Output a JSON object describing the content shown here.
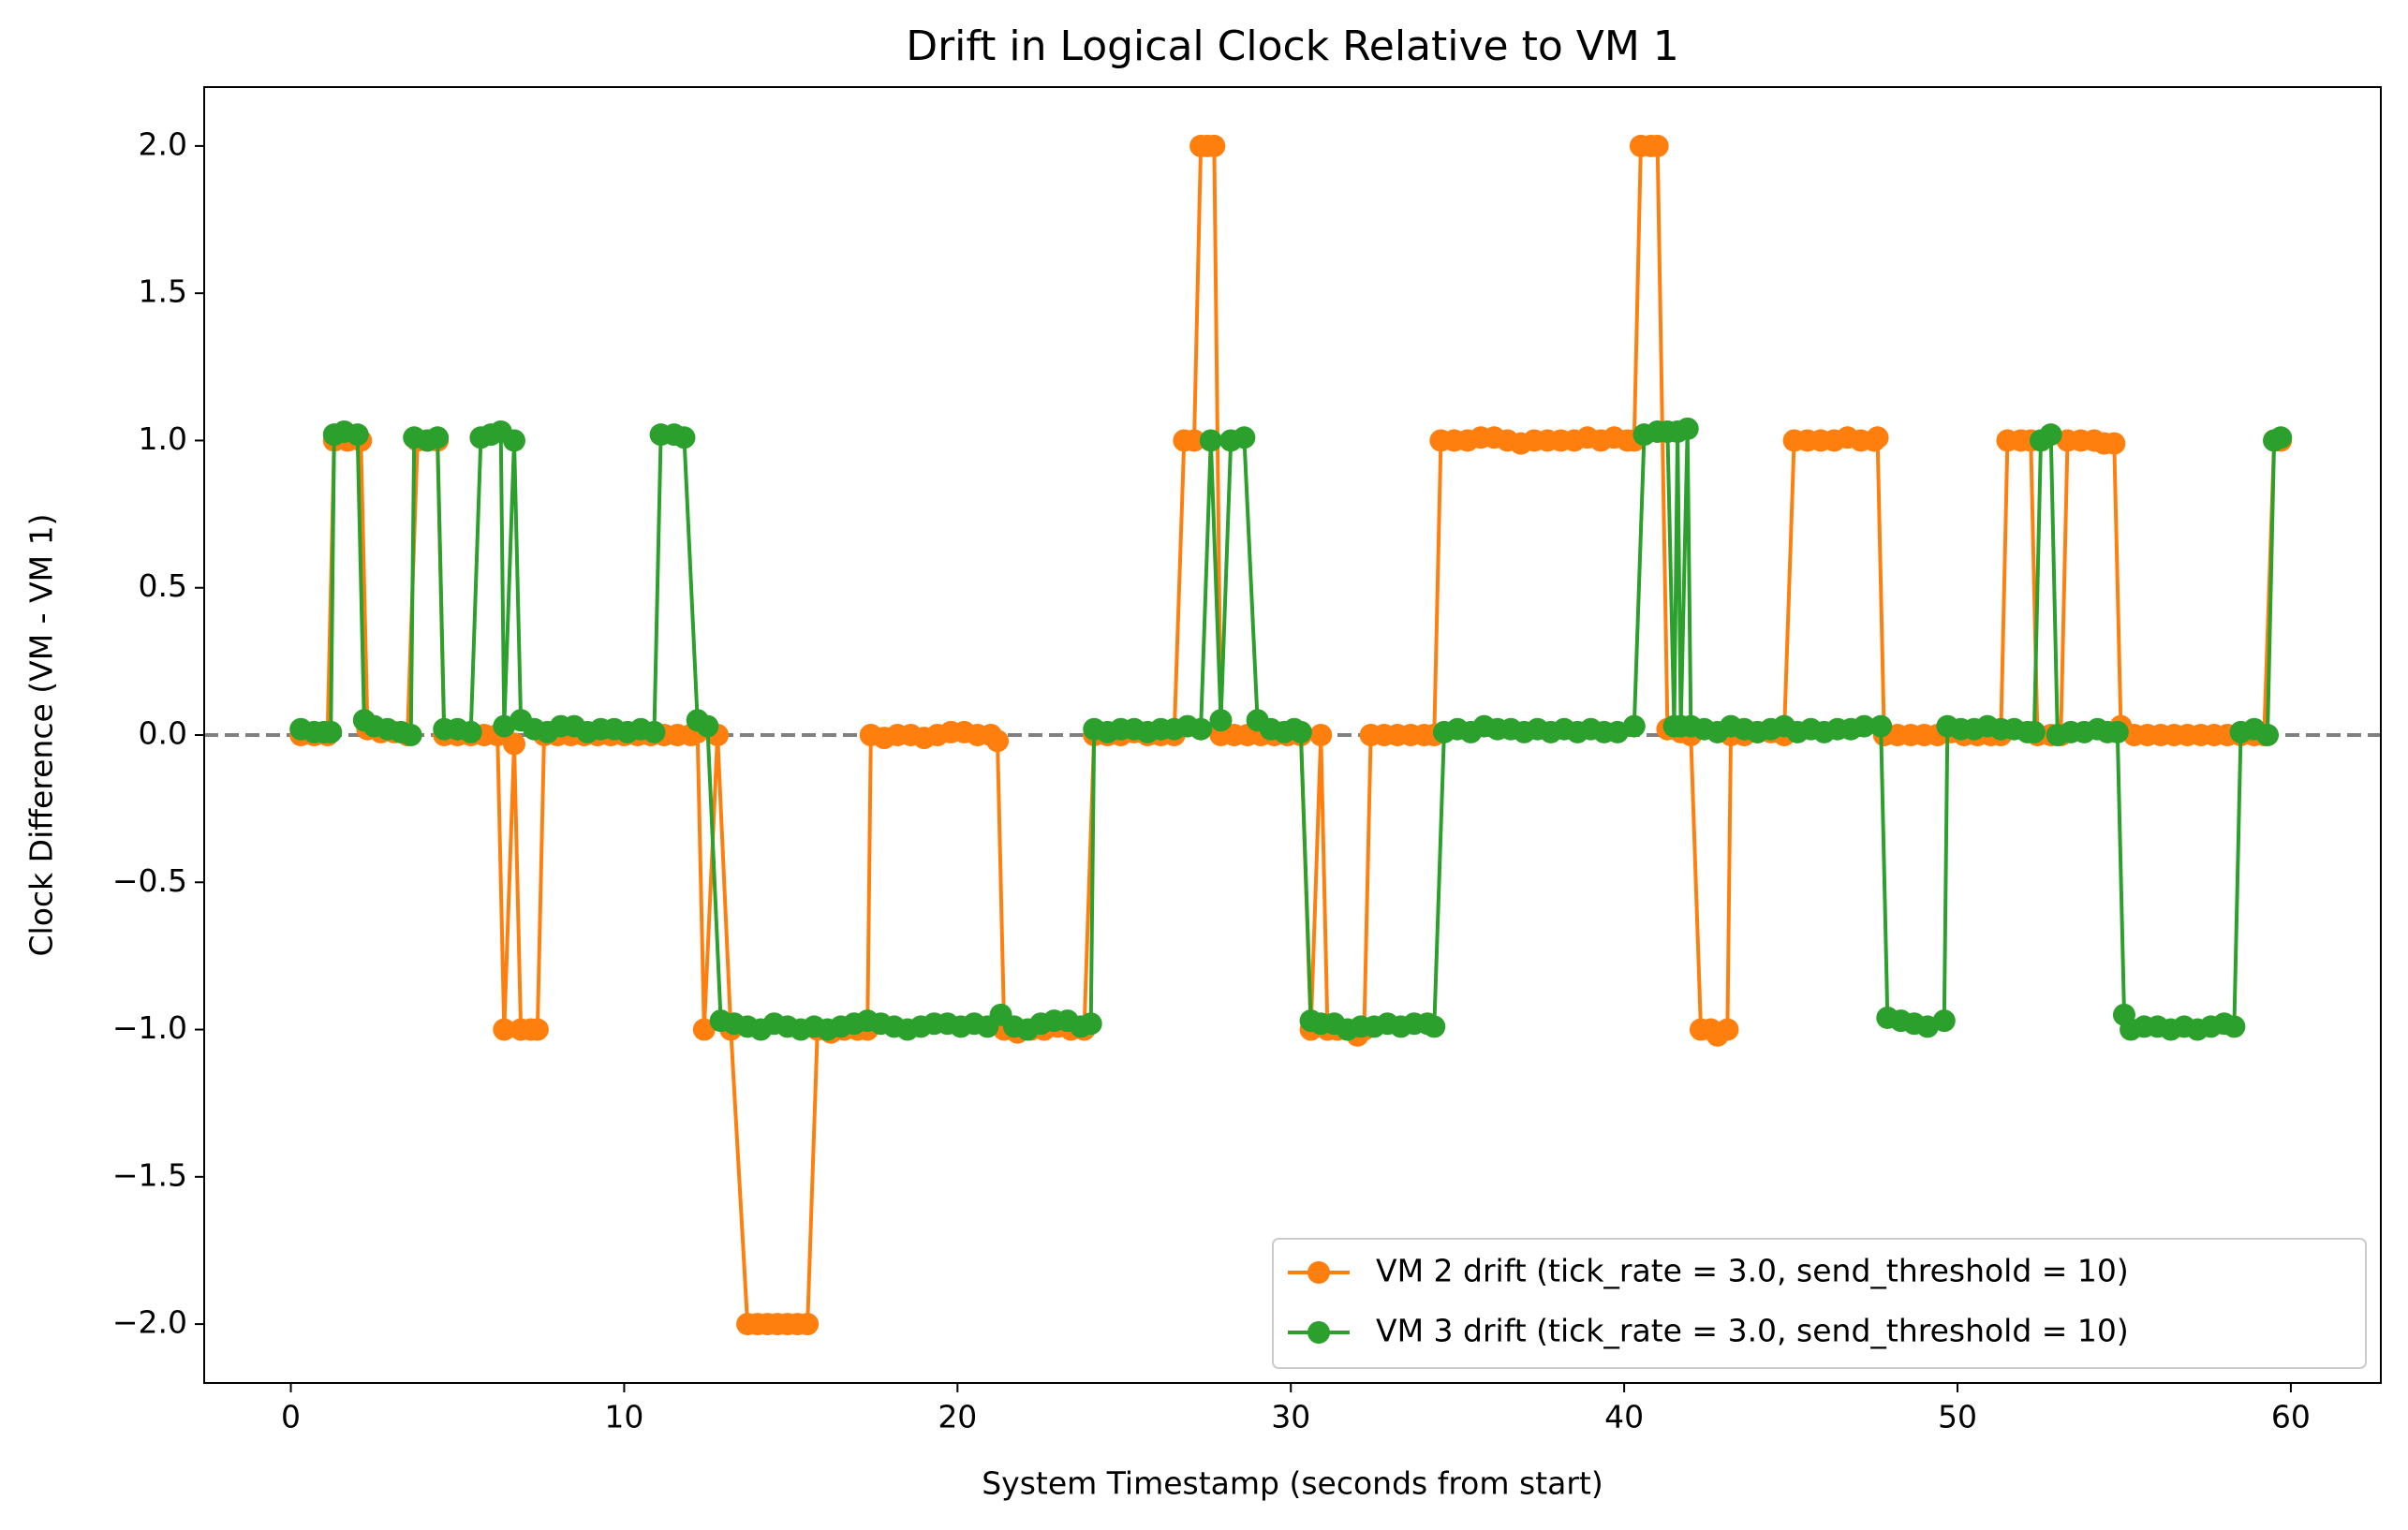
{
  "chart_data": {
    "type": "line",
    "title": "Drift in Logical Clock Relative to VM 1",
    "xlabel": "System Timestamp (seconds from start)",
    "ylabel": "Clock Difference (VM - VM 1)",
    "xlim": [
      -2.6,
      62.7
    ],
    "ylim": [
      -2.2,
      2.2
    ],
    "xticks": [
      0,
      10,
      20,
      30,
      40,
      50,
      60
    ],
    "yticks": [
      {
        "value": -2,
        "label": "−2.0"
      },
      {
        "value": -1.5,
        "label": "−1.5"
      },
      {
        "value": -1,
        "label": "−1.0"
      },
      {
        "value": -0.5,
        "label": "−0.5"
      },
      {
        "value": 0,
        "label": "0.0"
      },
      {
        "value": 0.5,
        "label": "0.5"
      },
      {
        "value": 1,
        "label": "1.0"
      },
      {
        "value": 1.5,
        "label": "1.5"
      },
      {
        "value": 2,
        "label": "2.0"
      }
    ],
    "grid": false,
    "legend": "lower right",
    "reference_line": {
      "value": 0,
      "color": "#808080"
    },
    "series": [
      {
        "name": "VM 2 drift (tick_rate = 3.0, send_threshold = 10)",
        "color": "#ff7f0e",
        "x": [
          0.3,
          0.7,
          1.1,
          1.3,
          1.7,
          2.1,
          2.3,
          2.7,
          3.1,
          3.5,
          3.8,
          4.1,
          4.4,
          4.6,
          5.0,
          5.4,
          5.8,
          6.2,
          6.4,
          6.7,
          6.9,
          7.2,
          7.4,
          7.6,
          8.0,
          8.4,
          8.8,
          9.2,
          9.6,
          10.0,
          10.4,
          10.8,
          11.2,
          11.6,
          12.0,
          12.2,
          12.4,
          12.8,
          13.2,
          13.7,
          14.0,
          14.3,
          14.6,
          14.9,
          15.2,
          15.5,
          15.8,
          16.2,
          16.6,
          17.0,
          17.3,
          17.4,
          17.8,
          18.2,
          18.6,
          19.0,
          19.4,
          19.8,
          20.2,
          20.6,
          21.0,
          21.2,
          21.4,
          21.8,
          22.2,
          22.6,
          23.0,
          23.4,
          23.8,
          24.1,
          24.5,
          24.9,
          25.3,
          25.7,
          26.1,
          26.5,
          26.8,
          27.1,
          27.3,
          27.5,
          27.7,
          27.9,
          28.3,
          28.7,
          29.1,
          29.5,
          29.9,
          30.3,
          30.6,
          30.9,
          31.1,
          31.4,
          31.7,
          32.0,
          32.2,
          32.4,
          32.8,
          33.2,
          33.6,
          34.0,
          34.3,
          34.5,
          34.9,
          35.3,
          35.7,
          36.1,
          36.5,
          36.9,
          37.3,
          37.7,
          38.1,
          38.5,
          38.9,
          39.3,
          39.7,
          40.1,
          40.3,
          40.5,
          40.8,
          41.0,
          41.3,
          41.7,
          42.0,
          42.3,
          42.6,
          42.8,
          43.1,
          43.2,
          43.6,
          44.0,
          44.4,
          44.8,
          45.1,
          45.5,
          45.9,
          46.3,
          46.7,
          47.1,
          47.5,
          47.6,
          47.8,
          48.2,
          48.6,
          49.0,
          49.4,
          49.8,
          50.2,
          50.6,
          51.0,
          51.3,
          51.5,
          51.9,
          52.2,
          52.4,
          52.8,
          53.1,
          53.3,
          53.7,
          54.1,
          54.4,
          54.7,
          54.9,
          55.3,
          55.7,
          56.1,
          56.5,
          56.9,
          57.3,
          57.7,
          58.1,
          58.5,
          58.9,
          59.2,
          59.5,
          59.7
        ],
        "values": [
          0,
          0,
          0,
          1,
          1,
          1,
          0.02,
          0.01,
          0.01,
          0,
          1,
          1,
          1,
          0,
          0,
          0,
          0,
          0,
          -1,
          -0.03,
          -1,
          -1,
          -1,
          0,
          0,
          0,
          0,
          0,
          0,
          0,
          0,
          0,
          0,
          0,
          0,
          0.01,
          -1,
          0,
          -1,
          -2,
          -2,
          -2,
          -2,
          -2,
          -2,
          -2,
          -1,
          -1.01,
          -1,
          -1,
          -1,
          0,
          -0.01,
          0,
          0,
          -0.01,
          0,
          0.01,
          0.01,
          0,
          0,
          -0.02,
          -1,
          -1.01,
          -1,
          -1,
          -0.99,
          -1,
          -1,
          0,
          0,
          0,
          0.01,
          0,
          0,
          0,
          1,
          1,
          2,
          2,
          2,
          0,
          0,
          0,
          0,
          0,
          0,
          0,
          -1,
          0,
          -1,
          -1,
          -1,
          -1.02,
          -1,
          0,
          0,
          0,
          0,
          0,
          0,
          1,
          1,
          1,
          1.01,
          1.01,
          1,
          0.99,
          1,
          1,
          1,
          1,
          1.01,
          1,
          1.01,
          1,
          1,
          2,
          2,
          2,
          0.02,
          0.01,
          0,
          -1,
          -1,
          -1.02,
          -1,
          0,
          0,
          0.01,
          0.01,
          0,
          1,
          1,
          1,
          1,
          1.01,
          1,
          1,
          1.01,
          0,
          0,
          0,
          0,
          0,
          0.01,
          0,
          0,
          0,
          0,
          1,
          1,
          1,
          0,
          0,
          0,
          1,
          1,
          1,
          0.99,
          0.99,
          0.03,
          0,
          0,
          0,
          0,
          0,
          0,
          0,
          0,
          0,
          0,
          0,
          1,
          1
        ]
      },
      {
        "name": "VM 3 drift (tick_rate = 3.0, send_threshold = 10)",
        "color": "#2ca02c",
        "x": [
          0.3,
          0.7,
          1.0,
          1.2,
          1.3,
          1.6,
          2.0,
          2.2,
          2.5,
          2.9,
          3.3,
          3.6,
          3.7,
          4.1,
          4.4,
          4.6,
          5.0,
          5.4,
          5.7,
          6.0,
          6.3,
          6.4,
          6.7,
          6.9,
          7.3,
          7.7,
          8.1,
          8.5,
          8.9,
          9.3,
          9.7,
          10.1,
          10.5,
          10.9,
          11.1,
          11.5,
          11.8,
          12.2,
          12.5,
          12.9,
          13.3,
          13.7,
          14.1,
          14.5,
          14.9,
          15.3,
          15.7,
          16.1,
          16.5,
          16.9,
          17.3,
          17.7,
          18.1,
          18.5,
          18.9,
          19.3,
          19.7,
          20.1,
          20.5,
          20.9,
          21.3,
          21.7,
          22.1,
          22.5,
          22.9,
          23.3,
          23.7,
          24.0,
          24.1,
          24.5,
          24.9,
          25.3,
          25.7,
          26.1,
          26.5,
          26.9,
          27.3,
          27.6,
          27.9,
          28.2,
          28.6,
          29.0,
          29.4,
          29.8,
          30.1,
          30.3,
          30.6,
          30.9,
          31.3,
          31.7,
          32.1,
          32.5,
          32.9,
          33.3,
          33.7,
          34.1,
          34.3,
          34.6,
          35.0,
          35.4,
          35.8,
          36.2,
          36.6,
          37.0,
          37.4,
          37.8,
          38.2,
          38.6,
          39.0,
          39.4,
          39.8,
          40.3,
          40.6,
          41.0,
          41.3,
          41.5,
          41.6,
          41.7,
          41.9,
          42.0,
          42.4,
          42.8,
          43.2,
          43.6,
          44.0,
          44.4,
          44.8,
          45.2,
          45.6,
          46.0,
          46.4,
          46.8,
          47.2,
          47.7,
          47.9,
          48.3,
          48.7,
          49.1,
          49.6,
          49.7,
          50.1,
          50.5,
          50.9,
          51.3,
          51.7,
          52.1,
          52.3,
          52.5,
          52.8,
          53.0,
          53.4,
          53.8,
          54.2,
          54.5,
          54.8,
          55.0,
          55.2,
          55.6,
          56.0,
          56.4,
          56.8,
          57.2,
          57.6,
          58.0,
          58.3,
          58.5,
          58.9,
          59.3,
          59.5,
          59.7
        ],
        "values": [
          0.02,
          0.01,
          0.01,
          0.01,
          1.02,
          1.03,
          1.02,
          0.05,
          0.03,
          0.02,
          0.01,
          0,
          1.01,
          1,
          1.01,
          0.02,
          0.02,
          0.01,
          1.01,
          1.02,
          1.03,
          0.03,
          1,
          0.05,
          0.02,
          0.01,
          0.03,
          0.03,
          0.01,
          0.02,
          0.02,
          0.01,
          0.02,
          0.01,
          1.02,
          1.02,
          1.01,
          0.05,
          0.03,
          -0.97,
          -0.98,
          -0.99,
          -1,
          -0.98,
          -0.99,
          -1,
          -0.99,
          -1,
          -0.99,
          -0.98,
          -0.97,
          -0.98,
          -0.99,
          -1,
          -0.99,
          -0.98,
          -0.98,
          -0.99,
          -0.98,
          -0.99,
          -0.95,
          -0.99,
          -1,
          -0.98,
          -0.97,
          -0.97,
          -0.99,
          -0.98,
          0.02,
          0.01,
          0.02,
          0.02,
          0.01,
          0.02,
          0.02,
          0.03,
          0.02,
          1,
          0.05,
          1,
          1.01,
          0.05,
          0.02,
          0.01,
          0.02,
          0.01,
          -0.97,
          -0.98,
          -0.98,
          -1,
          -0.99,
          -0.99,
          -0.98,
          -0.99,
          -0.98,
          -0.98,
          -0.99,
          0.01,
          0.02,
          0.01,
          0.03,
          0.02,
          0.02,
          0.01,
          0.02,
          0.01,
          0.02,
          0.01,
          0.02,
          0.01,
          0.01,
          0.03,
          1.02,
          1.03,
          1.03,
          0.03,
          1.03,
          0.03,
          1.04,
          0.03,
          0.02,
          0.01,
          0.03,
          0.02,
          0.01,
          0.02,
          0.03,
          0.01,
          0.02,
          0.01,
          0.02,
          0.02,
          0.03,
          0.03,
          -0.96,
          -0.97,
          -0.98,
          -0.99,
          -0.97,
          0.03,
          0.02,
          0.02,
          0.03,
          0.02,
          0.02,
          0.01,
          0.01,
          1,
          1.02,
          0,
          0.01,
          0.01,
          0.02,
          0.01,
          0.01,
          -0.95,
          -1,
          -0.99,
          -0.99,
          -1,
          -0.99,
          -1,
          -0.99,
          -0.98,
          -0.99,
          0.01,
          0.02,
          0,
          1,
          1.01
        ]
      }
    ]
  }
}
